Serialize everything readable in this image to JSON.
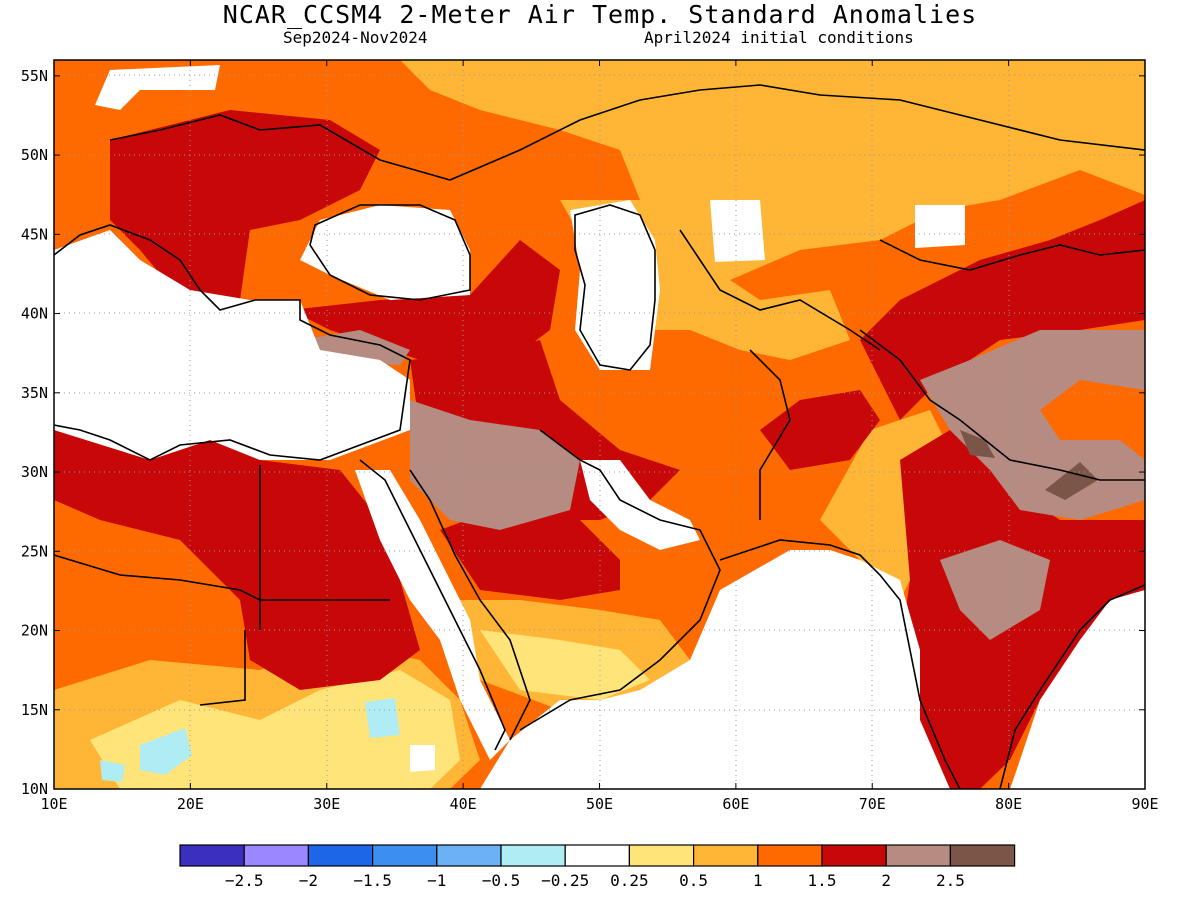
{
  "title": "NCAR_CCSM4 2-Meter Air Temp. Standard Anomalies",
  "subtitle_left": "Sep2024-Nov2024",
  "subtitle_right": "April2024 initial conditions",
  "x_ticks": [
    "10E",
    "20E",
    "30E",
    "40E",
    "50E",
    "60E",
    "70E",
    "80E",
    "90E"
  ],
  "y_ticks": [
    "55N",
    "50N",
    "45N",
    "40N",
    "35N",
    "30N",
    "25N",
    "20N",
    "15N",
    "10N"
  ],
  "colorbar": {
    "colors": [
      "#3b2fc0",
      "#9b87ff",
      "#1e66e8",
      "#3c8ff0",
      "#6ab2f5",
      "#b0ecf3",
      "#ffffff",
      "#ffe47a",
      "#ffb637",
      "#ff6a00",
      "#c80808",
      "#b58b82",
      "#7a5548"
    ],
    "labels": [
      "-2.5",
      "-2",
      "-1.5",
      "-1",
      "-0.5",
      "-0.25",
      "0.25",
      "0.5",
      "1",
      "1.5",
      "2",
      "2.5"
    ]
  },
  "colors": {
    "orange": "#ff6a00",
    "light_orange": "#ffb637",
    "yellow": "#ffe47a",
    "red": "#c80808",
    "mauve": "#b58b82",
    "brown": "#7a5548",
    "cyan": "#b0ecf3"
  }
}
